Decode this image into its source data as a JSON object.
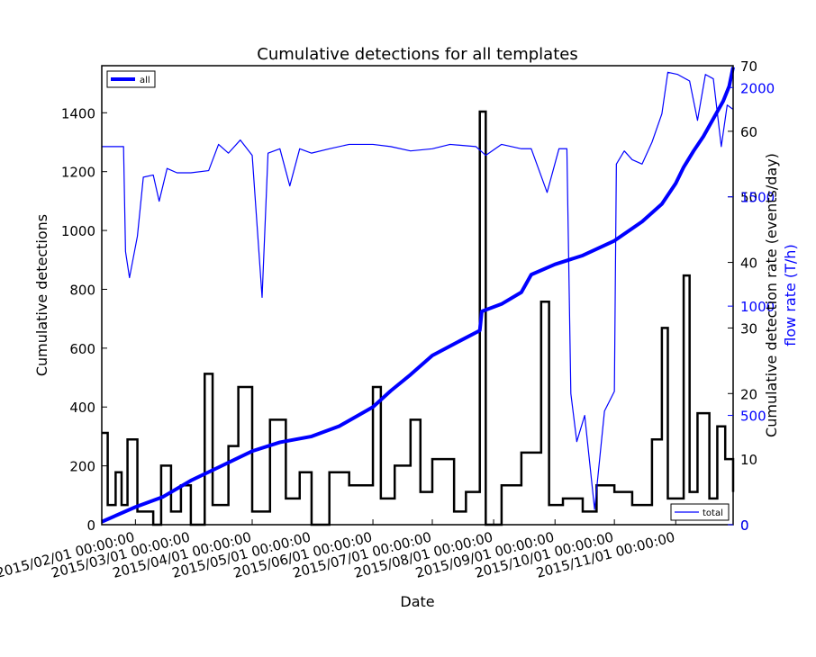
{
  "chart_data": {
    "type": "line",
    "title": "Cumulative detections for all templates",
    "xlabel": "Date",
    "x_range": [
      "2015-01-15",
      "2015-11-30"
    ],
    "x_ticks": [
      "2015/02/01 00:00:00",
      "2015/03/01 00:00:00",
      "2015/04/01 00:00:00",
      "2015/05/01 00:00:00",
      "2015/06/01 00:00:00",
      "2015/07/01 00:00:00",
      "2015/08/01 00:00:00",
      "2015/09/01 00:00:00",
      "2015/10/01 00:00:00",
      "2015/11/01 00:00:00"
    ],
    "axes": {
      "left": {
        "label": "Cumulative detections",
        "ylim": [
          0,
          1560
        ],
        "ticks": [
          "0",
          "200",
          "400",
          "600",
          "800",
          "1000",
          "1200",
          "1400"
        ]
      },
      "right_inner": {
        "label": "Cumulative detection rate (events/day)",
        "ylim": [
          0,
          70
        ],
        "ticks": [
          "0",
          "10",
          "20",
          "30",
          "40",
          "50",
          "60",
          "70"
        ]
      },
      "right_outer": {
        "label": "flow rate (T/h)",
        "ylim": [
          0,
          2100
        ],
        "ticks": [
          "0",
          "500",
          "1000",
          "1500",
          "2000"
        ],
        "color": "#0000ff"
      }
    },
    "legends": [
      {
        "label": "all",
        "placement": "top-left"
      },
      {
        "label": "total",
        "placement": "bottom-right"
      }
    ],
    "series": [
      {
        "name": "all",
        "axis": "left",
        "color": "#0000ff",
        "style": "thick-line",
        "points": [
          [
            "2015-01-15",
            10
          ],
          [
            "2015-02-01",
            60
          ],
          [
            "2015-02-15",
            95
          ],
          [
            "2015-03-01",
            150
          ],
          [
            "2015-03-15",
            195
          ],
          [
            "2015-04-01",
            250
          ],
          [
            "2015-04-15",
            280
          ],
          [
            "2015-05-01",
            300
          ],
          [
            "2015-05-15",
            335
          ],
          [
            "2015-06-01",
            400
          ],
          [
            "2015-06-10",
            455
          ],
          [
            "2015-06-20",
            510
          ],
          [
            "2015-07-01",
            575
          ],
          [
            "2015-07-15",
            625
          ],
          [
            "2015-07-25",
            660
          ],
          [
            "2015-07-26",
            725
          ],
          [
            "2015-08-05",
            750
          ],
          [
            "2015-08-15",
            790
          ],
          [
            "2015-08-20",
            850
          ],
          [
            "2015-09-01",
            885
          ],
          [
            "2015-09-15",
            915
          ],
          [
            "2015-10-01",
            965
          ],
          [
            "2015-10-15",
            1030
          ],
          [
            "2015-10-25",
            1090
          ],
          [
            "2015-11-01",
            1160
          ],
          [
            "2015-11-05",
            1215
          ],
          [
            "2015-11-10",
            1270
          ],
          [
            "2015-11-15",
            1320
          ],
          [
            "2015-11-20",
            1380
          ],
          [
            "2015-11-25",
            1440
          ],
          [
            "2015-11-28",
            1490
          ],
          [
            "2015-11-30",
            1555
          ]
        ]
      },
      {
        "name": "total",
        "axis": "right_outer",
        "color": "#0000ff",
        "style": "thin-line",
        "points": [
          [
            "2015-01-15",
            1730
          ],
          [
            "2015-01-26",
            1730
          ],
          [
            "2015-01-27",
            1250
          ],
          [
            "2015-01-29",
            1130
          ],
          [
            "2015-02-02",
            1320
          ],
          [
            "2015-02-05",
            1590
          ],
          [
            "2015-02-10",
            1600
          ],
          [
            "2015-02-13",
            1480
          ],
          [
            "2015-02-17",
            1630
          ],
          [
            "2015-02-22",
            1610
          ],
          [
            "2015-03-01",
            1610
          ],
          [
            "2015-03-10",
            1620
          ],
          [
            "2015-03-15",
            1740
          ],
          [
            "2015-03-20",
            1700
          ],
          [
            "2015-03-26",
            1760
          ],
          [
            "2015-04-01",
            1690
          ],
          [
            "2015-04-06",
            1040
          ],
          [
            "2015-04-09",
            1700
          ],
          [
            "2015-04-15",
            1720
          ],
          [
            "2015-04-20",
            1550
          ],
          [
            "2015-04-25",
            1720
          ],
          [
            "2015-05-01",
            1700
          ],
          [
            "2015-05-10",
            1720
          ],
          [
            "2015-05-20",
            1740
          ],
          [
            "2015-06-01",
            1740
          ],
          [
            "2015-06-10",
            1730
          ],
          [
            "2015-06-20",
            1710
          ],
          [
            "2015-07-01",
            1720
          ],
          [
            "2015-07-10",
            1740
          ],
          [
            "2015-07-23",
            1730
          ],
          [
            "2015-07-28",
            1690
          ],
          [
            "2015-08-05",
            1740
          ],
          [
            "2015-08-15",
            1720
          ],
          [
            "2015-08-20",
            1720
          ],
          [
            "2015-08-28",
            1520
          ],
          [
            "2015-09-03",
            1720
          ],
          [
            "2015-09-07",
            1720
          ],
          [
            "2015-09-09",
            600
          ],
          [
            "2015-09-12",
            380
          ],
          [
            "2015-09-16",
            500
          ],
          [
            "2015-09-21",
            70
          ],
          [
            "2015-09-26",
            520
          ],
          [
            "2015-10-01",
            610
          ],
          [
            "2015-10-02",
            1650
          ],
          [
            "2015-10-06",
            1710
          ],
          [
            "2015-10-10",
            1670
          ],
          [
            "2015-10-15",
            1650
          ],
          [
            "2015-10-20",
            1750
          ],
          [
            "2015-10-25",
            1880
          ],
          [
            "2015-10-28",
            2070
          ],
          [
            "2015-11-02",
            2060
          ],
          [
            "2015-11-08",
            2030
          ],
          [
            "2015-11-12",
            1850
          ],
          [
            "2015-11-16",
            2060
          ],
          [
            "2015-11-20",
            2040
          ],
          [
            "2015-11-24",
            1730
          ],
          [
            "2015-11-27",
            1920
          ],
          [
            "2015-11-30",
            1900
          ]
        ]
      },
      {
        "name": "",
        "axis": "right_inner",
        "color": "#000000",
        "style": "steps",
        "points": [
          [
            "2015-01-15",
            14
          ],
          [
            "2015-01-18",
            3
          ],
          [
            "2015-01-22",
            8
          ],
          [
            "2015-01-25",
            3
          ],
          [
            "2015-01-28",
            13
          ],
          [
            "2015-02-02",
            2
          ],
          [
            "2015-02-10",
            0
          ],
          [
            "2015-02-14",
            9
          ],
          [
            "2015-02-19",
            2
          ],
          [
            "2015-02-24",
            6
          ],
          [
            "2015-03-01",
            0
          ],
          [
            "2015-03-08",
            23
          ],
          [
            "2015-03-12",
            3
          ],
          [
            "2015-03-20",
            12
          ],
          [
            "2015-03-25",
            21
          ],
          [
            "2015-04-01",
            2
          ],
          [
            "2015-04-10",
            16
          ],
          [
            "2015-04-18",
            4
          ],
          [
            "2015-04-25",
            8
          ],
          [
            "2015-05-01",
            0
          ],
          [
            "2015-05-10",
            8
          ],
          [
            "2015-05-20",
            6
          ],
          [
            "2015-06-01",
            21
          ],
          [
            "2015-06-05",
            4
          ],
          [
            "2015-06-12",
            9
          ],
          [
            "2015-06-20",
            16
          ],
          [
            "2015-06-25",
            5
          ],
          [
            "2015-07-01",
            10
          ],
          [
            "2015-07-12",
            2
          ],
          [
            "2015-07-18",
            5
          ],
          [
            "2015-07-25",
            63
          ],
          [
            "2015-07-28",
            0
          ],
          [
            "2015-08-05",
            6
          ],
          [
            "2015-08-15",
            11
          ],
          [
            "2015-08-25",
            34
          ],
          [
            "2015-08-29",
            3
          ],
          [
            "2015-09-05",
            4
          ],
          [
            "2015-09-15",
            2
          ],
          [
            "2015-09-22",
            6
          ],
          [
            "2015-10-01",
            5
          ],
          [
            "2015-10-10",
            3
          ],
          [
            "2015-10-20",
            13
          ],
          [
            "2015-10-25",
            30
          ],
          [
            "2015-10-28",
            4
          ],
          [
            "2015-11-05",
            38
          ],
          [
            "2015-11-08",
            5
          ],
          [
            "2015-11-12",
            17
          ],
          [
            "2015-11-18",
            4
          ],
          [
            "2015-11-22",
            15
          ],
          [
            "2015-11-26",
            10
          ],
          [
            "2015-11-30",
            5
          ]
        ]
      }
    ]
  }
}
